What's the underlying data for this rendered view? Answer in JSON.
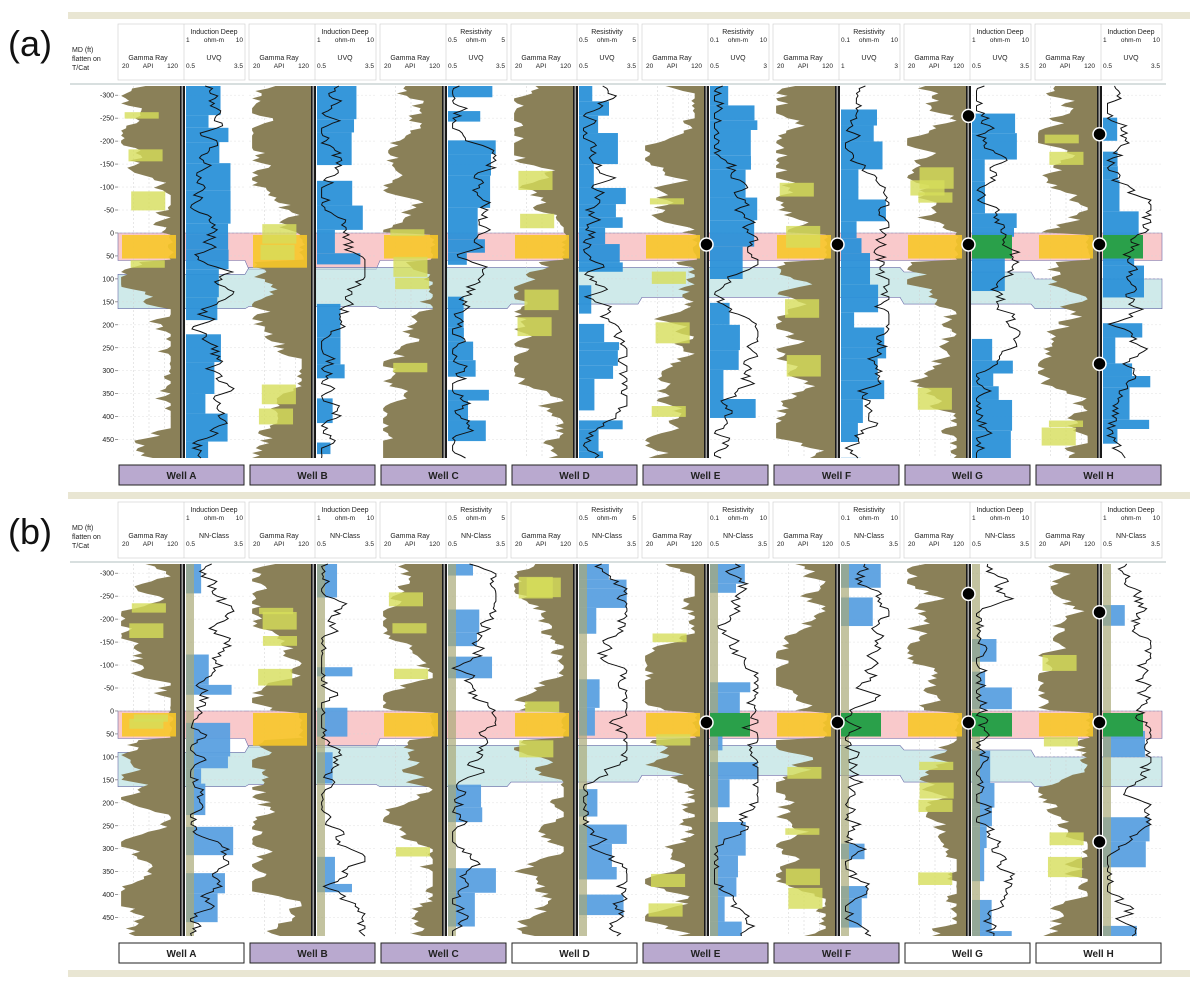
{
  "figure": {
    "panel_labels": [
      "(a)",
      "(b)"
    ],
    "depth_axis_title": [
      "MD (ft)",
      "flatten on",
      "T/Cat"
    ]
  },
  "colors": {
    "gamma_fill": "#8a8058",
    "sand_fill": "#d6dd5a",
    "pay_fill": "#f7c629",
    "uvq_blue": "#2b91d8",
    "class_blue": "#5aa0e0",
    "class_green": "#2aa04a",
    "zone_pink": "#f7b7b9",
    "zone_cyan": "#bfe3e3",
    "zone_lavender": "#c6c4ea",
    "zone_magenta": "#f3a6de",
    "well_label_purple": "#b9a9cf",
    "frame": "#e9e6d3"
  },
  "chart_data": [
    {
      "type": "table",
      "panel": "(a)",
      "depth_ticks": [
        "-300",
        "-250",
        "-200",
        "-150",
        "-100",
        "-50",
        "0",
        "50",
        "100",
        "150",
        "200",
        "250",
        "300",
        "350",
        "400",
        "450"
      ],
      "ylim": [
        -320,
        490
      ],
      "tracks": [
        {
          "well": "Well A",
          "gr_title": "Gamma Ray",
          "gr_unit": "API",
          "gr_scale": [
            "20",
            "120"
          ],
          "res_title": "Induction Deep",
          "res_unit": "ohm-m",
          "res_scale": [
            "1",
            "10"
          ],
          "class_title": "UVQ",
          "class_scale": [
            "0.5",
            "3.5"
          ],
          "label_highlight": true,
          "markers": []
        },
        {
          "well": "Well B",
          "gr_title": "Gamma Ray",
          "gr_unit": "API",
          "gr_scale": [
            "20",
            "120"
          ],
          "res_title": "Induction Deep",
          "res_unit": "ohm-m",
          "res_scale": [
            "1",
            "10"
          ],
          "class_title": "UVQ",
          "class_scale": [
            "0.5",
            "3.5"
          ],
          "label_highlight": true,
          "markers": []
        },
        {
          "well": "Well C",
          "gr_title": "Gamma Ray",
          "gr_unit": "API",
          "gr_scale": [
            "20",
            "120"
          ],
          "res_title": "Resistivity",
          "res_unit": "ohm-m",
          "res_scale": [
            "0.5",
            "5"
          ],
          "class_title": "UVQ",
          "class_scale": [
            "0.5",
            "3.5"
          ],
          "label_highlight": true,
          "markers": []
        },
        {
          "well": "Well D",
          "gr_title": "Gamma Ray",
          "gr_unit": "API",
          "gr_scale": [
            "20",
            "120"
          ],
          "res_title": "Resistivity",
          "res_unit": "ohm-m",
          "res_scale": [
            "0.5",
            "5"
          ],
          "class_title": "UVQ",
          "class_scale": [
            "0.5",
            "3.5"
          ],
          "label_highlight": true,
          "markers": []
        },
        {
          "well": "Well E",
          "gr_title": "Gamma Ray",
          "gr_unit": "API",
          "gr_scale": [
            "20",
            "120"
          ],
          "res_title": "Resistivity",
          "res_unit": "ohm-m",
          "res_scale": [
            "0.1",
            "10"
          ],
          "class_title": "UVQ",
          "class_scale": [
            "0.5",
            "3"
          ],
          "label_highlight": true,
          "markers": [
            25
          ]
        },
        {
          "well": "Well F",
          "gr_title": "Gamma Ray",
          "gr_unit": "API",
          "gr_scale": [
            "20",
            "120"
          ],
          "res_title": "Resistivity",
          "res_unit": "ohm-m",
          "res_scale": [
            "0.1",
            "10"
          ],
          "class_title": "UVQ",
          "class_scale": [
            "1",
            "3"
          ],
          "label_highlight": true,
          "markers": [
            25
          ]
        },
        {
          "well": "Well G",
          "gr_title": "Gamma Ray",
          "gr_unit": "API",
          "gr_scale": [
            "20",
            "120"
          ],
          "res_title": "Induction Deep",
          "res_unit": "ohm-m",
          "res_scale": [
            "1",
            "10"
          ],
          "class_title": "UVQ",
          "class_scale": [
            "0.5",
            "3.5"
          ],
          "label_highlight": true,
          "markers": [
            -255,
            25
          ]
        },
        {
          "well": "Well H",
          "gr_title": "Gamma Ray",
          "gr_unit": "API",
          "gr_scale": [
            "20",
            "120"
          ],
          "res_title": "Induction Deep",
          "res_unit": "ohm-m",
          "res_scale": [
            "1",
            "10"
          ],
          "class_title": "UVQ",
          "class_scale": [
            "0.5",
            "3.5"
          ],
          "label_highlight": true,
          "markers": [
            -215,
            25,
            285
          ]
        }
      ],
      "zones": [
        {
          "name": "pink",
          "color": "#f7b7b9",
          "tops": [
            0,
            0,
            0,
            0,
            0,
            0,
            0,
            0
          ],
          "bases": [
            60,
            80,
            60,
            60,
            60,
            60,
            60,
            60
          ]
        },
        {
          "name": "cyan",
          "color": "#bfe3e3",
          "tops": [
            90,
            75,
            75,
            75,
            75,
            75,
            85,
            100
          ],
          "bases": [
            165,
            160,
            165,
            155,
            140,
            140,
            155,
            165
          ]
        }
      ]
    },
    {
      "type": "table",
      "panel": "(b)",
      "depth_ticks": [
        "-300",
        "-250",
        "-200",
        "-150",
        "-100",
        "-50",
        "0",
        "50",
        "100",
        "150",
        "200",
        "250",
        "300",
        "350",
        "400",
        "450"
      ],
      "ylim": [
        -320,
        490
      ],
      "tracks": [
        {
          "well": "Well A",
          "gr_title": "Gamma Ray",
          "gr_unit": "API",
          "gr_scale": [
            "20",
            "120"
          ],
          "res_title": "Induction Deep",
          "res_unit": "ohm-m",
          "res_scale": [
            "1",
            "10"
          ],
          "class_title": "NN-Class",
          "class_scale": [
            "0.5",
            "3.5"
          ],
          "label_highlight": false,
          "markers": []
        },
        {
          "well": "Well B",
          "gr_title": "Gamma Ray",
          "gr_unit": "API",
          "gr_scale": [
            "20",
            "120"
          ],
          "res_title": "Induction Deep",
          "res_unit": "ohm-m",
          "res_scale": [
            "1",
            "10"
          ],
          "class_title": "NN-Class",
          "class_scale": [
            "0.5",
            "3.5"
          ],
          "label_highlight": true,
          "markers": []
        },
        {
          "well": "Well C",
          "gr_title": "Gamma Ray",
          "gr_unit": "API",
          "gr_scale": [
            "20",
            "120"
          ],
          "res_title": "Resistivity",
          "res_unit": "ohm-m",
          "res_scale": [
            "0.5",
            "5"
          ],
          "class_title": "NN-Class",
          "class_scale": [
            "0.5",
            "3.5"
          ],
          "label_highlight": true,
          "markers": []
        },
        {
          "well": "Well D",
          "gr_title": "Gamma Ray",
          "gr_unit": "API",
          "gr_scale": [
            "20",
            "120"
          ],
          "res_title": "Resistivity",
          "res_unit": "ohm-m",
          "res_scale": [
            "0.5",
            "5"
          ],
          "class_title": "NN-Class",
          "class_scale": [
            "0.5",
            "3.5"
          ],
          "label_highlight": false,
          "markers": []
        },
        {
          "well": "Well E",
          "gr_title": "Gamma Ray",
          "gr_unit": "API",
          "gr_scale": [
            "20",
            "120"
          ],
          "res_title": "Resistivity",
          "res_unit": "ohm-m",
          "res_scale": [
            "0.1",
            "10"
          ],
          "class_title": "NN-Class",
          "class_scale": [
            "0.5",
            "3.5"
          ],
          "label_highlight": true,
          "markers": [
            25
          ]
        },
        {
          "well": "Well F",
          "gr_title": "Gamma Ray",
          "gr_unit": "API",
          "gr_scale": [
            "20",
            "120"
          ],
          "res_title": "Resistivity",
          "res_unit": "ohm-m",
          "res_scale": [
            "0.1",
            "10"
          ],
          "class_title": "NN-Class",
          "class_scale": [
            "0.5",
            "3.5"
          ],
          "label_highlight": true,
          "markers": [
            25
          ]
        },
        {
          "well": "Well G",
          "gr_title": "Gamma Ray",
          "gr_unit": "API",
          "gr_scale": [
            "20",
            "120"
          ],
          "res_title": "Induction Deep",
          "res_unit": "ohm-m",
          "res_scale": [
            "1",
            "10"
          ],
          "class_title": "NN-Class",
          "class_scale": [
            "0.5",
            "3.5"
          ],
          "label_highlight": false,
          "markers": [
            -255,
            25
          ]
        },
        {
          "well": "Well H",
          "gr_title": "Gamma Ray",
          "gr_unit": "API",
          "gr_scale": [
            "20",
            "120"
          ],
          "res_title": "Induction Deep",
          "res_unit": "ohm-m",
          "res_scale": [
            "1",
            "10"
          ],
          "class_title": "NN-Class",
          "class_scale": [
            "0.5",
            "3.5"
          ],
          "label_highlight": false,
          "markers": [
            -215,
            25,
            285
          ]
        }
      ],
      "zones": [
        {
          "name": "pink",
          "color": "#f7b7b9",
          "tops": [
            0,
            0,
            0,
            0,
            0,
            0,
            0,
            0
          ],
          "bases": [
            60,
            80,
            60,
            60,
            60,
            60,
            60,
            60
          ]
        },
        {
          "name": "cyan",
          "color": "#bfe3e3",
          "tops": [
            90,
            75,
            75,
            75,
            75,
            75,
            85,
            100
          ],
          "bases": [
            165,
            160,
            165,
            155,
            140,
            140,
            155,
            165
          ]
        }
      ]
    }
  ]
}
